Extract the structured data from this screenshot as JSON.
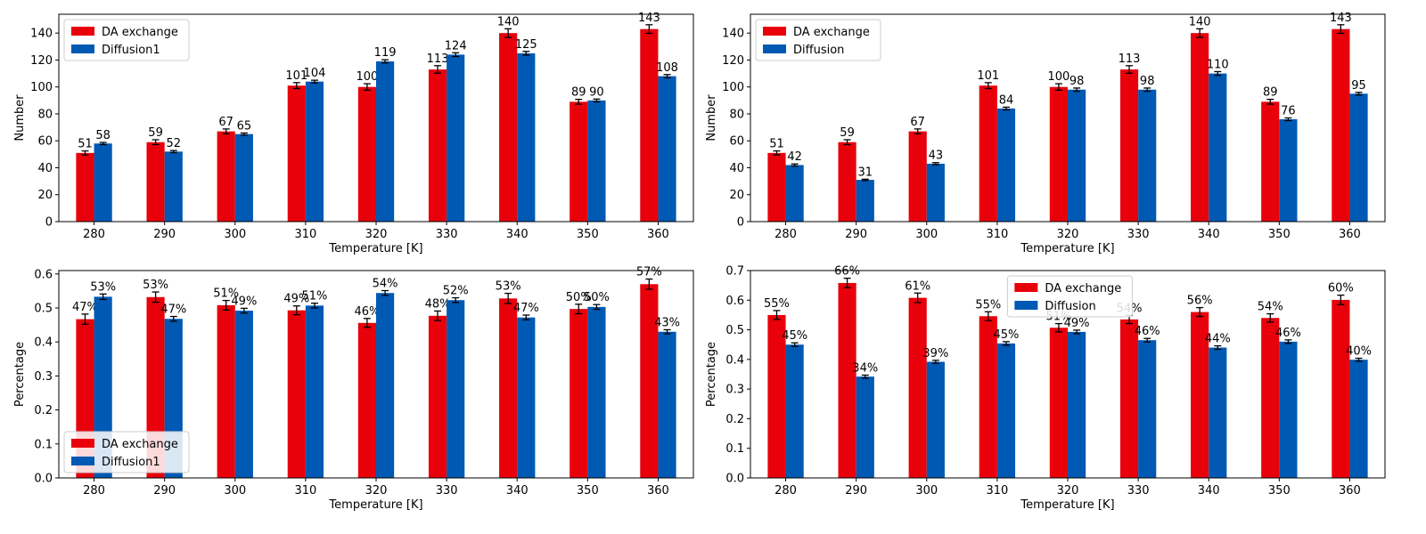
{
  "colors": {
    "da": "#e8000b",
    "diff": "#0059b3"
  },
  "chart_data": [
    {
      "type": "bar",
      "categories": [
        "280",
        "290",
        "300",
        "310",
        "320",
        "330",
        "340",
        "350",
        "360"
      ],
      "xlabel": "Temperature [K]",
      "ylabel": "Number",
      "ylim": [
        0,
        154
      ],
      "yticks": [
        0,
        20,
        40,
        60,
        80,
        100,
        120,
        140
      ],
      "ytick_labels": [
        "0",
        "20",
        "40",
        "60",
        "80",
        "100",
        "120",
        "140"
      ],
      "legend_position": "upper-left",
      "series": [
        {
          "name": "DA exchange",
          "values": [
            51,
            59,
            67,
            101,
            100,
            113,
            140,
            89,
            143
          ],
          "errors": [
            1.5,
            1.8,
            1.8,
            2.2,
            2.4,
            2.8,
            3.2,
            1.8,
            3.2
          ],
          "labels": [
            "51",
            "59",
            "67",
            "101",
            "100",
            "113",
            "140",
            "89",
            "143"
          ]
        },
        {
          "name": "Diffusion1",
          "values": [
            58,
            52,
            65,
            104,
            119,
            124,
            125,
            90,
            108
          ],
          "errors": [
            0.8,
            0.8,
            0.8,
            1.0,
            1.2,
            1.4,
            1.4,
            1.0,
            1.2
          ],
          "labels": [
            "58",
            "52",
            "65",
            "104",
            "119",
            "124",
            "125",
            "90",
            "108"
          ]
        }
      ]
    },
    {
      "type": "bar",
      "categories": [
        "280",
        "290",
        "300",
        "310",
        "320",
        "330",
        "340",
        "350",
        "360"
      ],
      "xlabel": "Temperature [K]",
      "ylabel": "Number",
      "ylim": [
        0,
        154
      ],
      "yticks": [
        0,
        20,
        40,
        60,
        80,
        100,
        120,
        140
      ],
      "ytick_labels": [
        "0",
        "20",
        "40",
        "60",
        "80",
        "100",
        "120",
        "140"
      ],
      "legend_position": "upper-left",
      "series": [
        {
          "name": "DA exchange",
          "values": [
            51,
            59,
            67,
            101,
            100,
            113,
            140,
            89,
            143
          ],
          "errors": [
            1.5,
            1.8,
            1.8,
            2.2,
            2.4,
            2.8,
            3.2,
            1.8,
            3.2
          ],
          "labels": [
            "51",
            "59",
            "67",
            "101",
            "100",
            "113",
            "140",
            "89",
            "143"
          ]
        },
        {
          "name": "Diffusion",
          "values": [
            42,
            31,
            43,
            84,
            98,
            98,
            110,
            76,
            95
          ],
          "errors": [
            0.8,
            0.5,
            0.8,
            1.0,
            1.2,
            1.2,
            1.4,
            1.0,
            1.0
          ],
          "labels": [
            "42",
            "31",
            "43",
            "84",
            "98",
            "98",
            "110",
            "76",
            "95"
          ]
        }
      ]
    },
    {
      "type": "bar",
      "categories": [
        "280",
        "290",
        "300",
        "310",
        "320",
        "330",
        "340",
        "350",
        "360"
      ],
      "xlabel": "Temperature [K]",
      "ylabel": "Percentage",
      "ylim": [
        0,
        0.61
      ],
      "yticks": [
        0,
        0.1,
        0.2,
        0.3,
        0.4,
        0.5,
        0.6
      ],
      "ytick_labels": [
        "0.0",
        "0.1",
        "0.2",
        "0.3",
        "0.4",
        "0.5",
        "0.6"
      ],
      "legend_position": "lower-left",
      "series": [
        {
          "name": "DA exchange",
          "values": [
            0.467,
            0.532,
            0.508,
            0.493,
            0.456,
            0.477,
            0.528,
            0.497,
            0.57
          ],
          "errors": [
            0.015,
            0.015,
            0.014,
            0.013,
            0.013,
            0.014,
            0.015,
            0.014,
            0.015
          ],
          "labels": [
            "47%",
            "53%",
            "51%",
            "49%",
            "46%",
            "48%",
            "53%",
            "50%",
            "57%"
          ]
        },
        {
          "name": "Diffusion1",
          "values": [
            0.533,
            0.468,
            0.492,
            0.507,
            0.544,
            0.523,
            0.472,
            0.503,
            0.43
          ],
          "errors": [
            0.008,
            0.007,
            0.007,
            0.007,
            0.007,
            0.007,
            0.007,
            0.007,
            0.006
          ],
          "labels": [
            "53%",
            "47%",
            "49%",
            "51%",
            "54%",
            "52%",
            "47%",
            "50%",
            "43%"
          ]
        }
      ]
    },
    {
      "type": "bar",
      "categories": [
        "280",
        "290",
        "300",
        "310",
        "320",
        "330",
        "340",
        "350",
        "360"
      ],
      "xlabel": "Temperature [K]",
      "ylabel": "Percentage",
      "ylim": [
        0,
        0.7
      ],
      "yticks": [
        0,
        0.1,
        0.2,
        0.3,
        0.4,
        0.5,
        0.6,
        0.7
      ],
      "ytick_labels": [
        "0.0",
        "0.1",
        "0.2",
        "0.3",
        "0.4",
        "0.5",
        "0.6",
        "0.7"
      ],
      "legend_position": "upper-center",
      "series": [
        {
          "name": "DA exchange",
          "values": [
            0.55,
            0.658,
            0.608,
            0.546,
            0.507,
            0.535,
            0.56,
            0.54,
            0.601
          ],
          "errors": [
            0.015,
            0.016,
            0.016,
            0.015,
            0.014,
            0.014,
            0.015,
            0.014,
            0.016
          ],
          "labels": [
            "55%",
            "66%",
            "61%",
            "55%",
            "51%",
            "54%",
            "56%",
            "54%",
            "60%"
          ]
        },
        {
          "name": "Diffusion",
          "values": [
            0.45,
            0.342,
            0.392,
            0.454,
            0.493,
            0.465,
            0.44,
            0.46,
            0.399
          ],
          "errors": [
            0.006,
            0.005,
            0.005,
            0.006,
            0.006,
            0.006,
            0.006,
            0.006,
            0.005
          ],
          "labels": [
            "45%",
            "34%",
            "39%",
            "45%",
            "49%",
            "46%",
            "44%",
            "46%",
            "40%"
          ]
        }
      ]
    }
  ]
}
